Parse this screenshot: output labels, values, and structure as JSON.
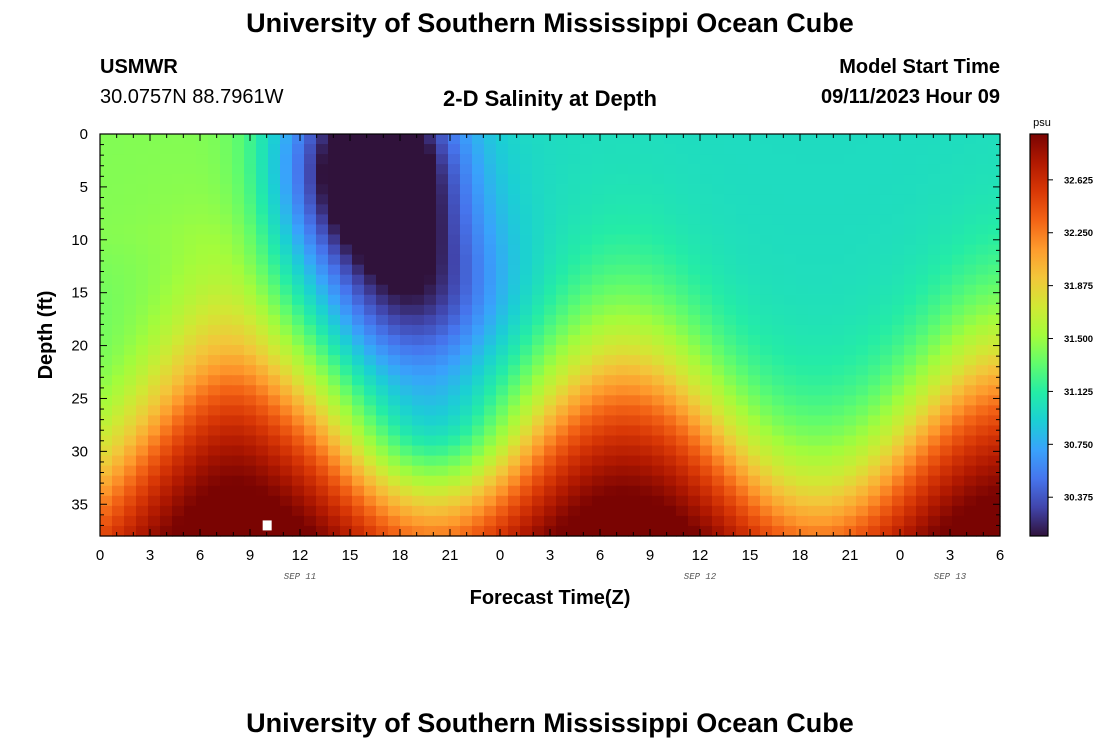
{
  "header": {
    "title": "University of Southern Mississippi Ocean Cube",
    "footer_title": "University of Southern Mississippi Ocean Cube",
    "station": "USMWR",
    "coords": "30.0757N  88.7961W",
    "plot_title": "2-D Salinity at Depth",
    "model_label": "Model Start Time",
    "model_time": "09/11/2023 Hour 09"
  },
  "chart_data": {
    "type": "heatmap",
    "title": "2-D Salinity at Depth",
    "xlabel": "Forecast Time(Z)",
    "ylabel": "Depth (ft)",
    "x_ticks": [
      "0",
      "3",
      "6",
      "9",
      "12",
      "15",
      "18",
      "21",
      "0",
      "3",
      "6",
      "9",
      "12",
      "15",
      "18",
      "21",
      "0",
      "3",
      "6"
    ],
    "x_range_hours": [
      0,
      54
    ],
    "day_labels": [
      {
        "text": "SEP 11",
        "hour": 12
      },
      {
        "text": "SEP 12",
        "hour": 36
      },
      {
        "text": "SEP 13",
        "hour": 51
      }
    ],
    "y_ticks": [
      0,
      5,
      10,
      15,
      20,
      25,
      30,
      35
    ],
    "y_range_ft": [
      0,
      38
    ],
    "colorbar": {
      "unit": "psu",
      "ticks": [
        "32.625",
        "32.250",
        "31.875",
        "31.500",
        "31.125",
        "30.750",
        "30.375"
      ],
      "range": [
        30.1,
        32.95
      ],
      "colors": [
        "#30123b",
        "#4145ab",
        "#4675ed",
        "#39a2fc",
        "#1bcfd4",
        "#24eca6",
        "#61fc6c",
        "#a4fc3b",
        "#d1e834",
        "#f3c63a",
        "#fe9b2d",
        "#f36315",
        "#d93806",
        "#b11901",
        "#7a0402"
      ]
    },
    "field_description": "salinity (psu) vs forecast hour and depth",
    "marker": {
      "hour": 10,
      "depth_ft": 37
    }
  }
}
